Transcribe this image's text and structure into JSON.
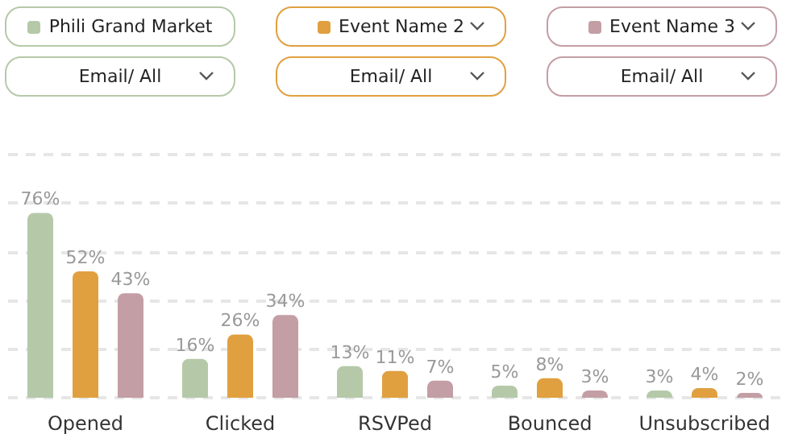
{
  "chart_data": {
    "type": "bar",
    "categories": [
      "Opened",
      "Clicked",
      "RSVPed",
      "Bounced",
      "Unsubscribed"
    ],
    "series": [
      {
        "name": "Phili Grand Market",
        "color": "#b5c9a9",
        "values": [
          76,
          16,
          13,
          5,
          3
        ],
        "value_labels": [
          "76%",
          "16%",
          "13%",
          "5%",
          "3%"
        ]
      },
      {
        "name": "Event Name 2",
        "color": "#e0a040",
        "values": [
          52,
          26,
          11,
          8,
          4
        ],
        "value_labels": [
          "52%",
          "26%",
          "11%",
          "8%",
          "4%"
        ]
      },
      {
        "name": "Event Name 3",
        "color": "#c39ea5",
        "values": [
          43,
          34,
          7,
          3,
          2
        ],
        "value_labels": [
          "43%",
          "34%",
          "7%",
          "3%",
          "2%"
        ]
      }
    ],
    "annotations": [
      "Email/ All",
      "Email/ All",
      "Email/ All"
    ],
    "ylim": [
      0,
      100
    ],
    "yticks": [
      {
        "value": 0,
        "label": null
      },
      {
        "value": 20,
        "label": null
      },
      {
        "value": 40,
        "label": null
      },
      {
        "value": 60,
        "label": null
      },
      {
        "value": 80,
        "label": null
      },
      {
        "value": 100,
        "label": null
      }
    ],
    "tick_labels": "x",
    "grid": "y",
    "legend": "top"
  }
}
